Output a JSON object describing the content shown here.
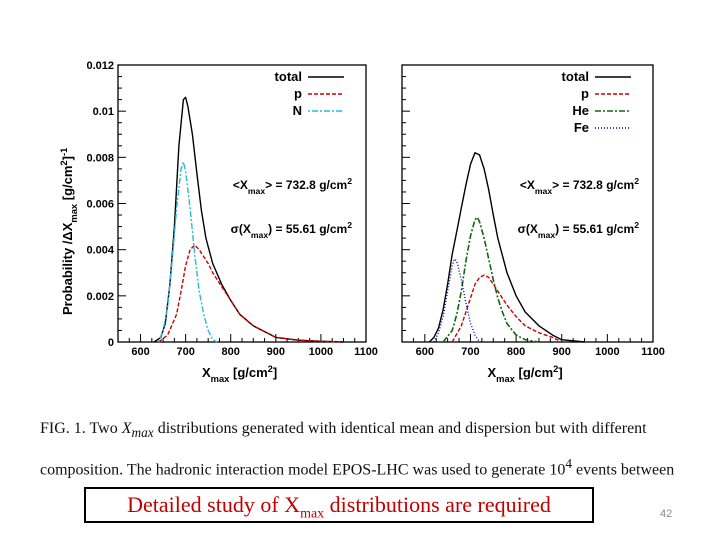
{
  "caption": {
    "line1_pre": "FIG. 1.  Two ",
    "line1_var": "X",
    "line1_sub": "max",
    "line1_post": " distributions generated with identical mean and dispersion but with different",
    "line2_pre": "composition. The hadronic interaction model EPOS-LHC was used to generate 10",
    "line2_sup": "4",
    "line2_post": " events between"
  },
  "banner": {
    "pre": "Detailed study of X",
    "sub": "max",
    "post": " distributions are required"
  },
  "slide_number": "42",
  "colors": {
    "total": "#000000",
    "p": "#cc0000",
    "N": "#22bbdd",
    "He": "#116611",
    "Fe": "#0000cc",
    "banner_text": "#c00000"
  },
  "chart_data": [
    {
      "type": "line",
      "title": "",
      "xlabel": "X_max [g/cm^2]",
      "ylabel": "Probability /ΔX_max [g/cm^2]^-1",
      "xlim": [
        550,
        1100
      ],
      "ylim": [
        0,
        0.012
      ],
      "xticks": [
        "600",
        "700",
        "800",
        "900",
        "1000",
        "1100"
      ],
      "yticks": [
        "0",
        "0.002",
        "0.004",
        "0.006",
        "0.008",
        "0.01",
        "0.012"
      ],
      "legend": [
        {
          "label": "total",
          "key": "total"
        },
        {
          "label": "p",
          "key": "p"
        },
        {
          "label": "N",
          "key": "N"
        }
      ],
      "annotations": [
        "<X_max> = 732.8 g/cm^2",
        "σ(X_max) = 55.61 g/cm^2"
      ],
      "series": [
        {
          "name": "total",
          "key": "total",
          "x": [
            630,
            645,
            655,
            665,
            675,
            685,
            695,
            700,
            705,
            715,
            725,
            735,
            745,
            760,
            780,
            800,
            820,
            850,
            880,
            900,
            950,
            1000,
            1050
          ],
          "y": [
            0,
            0.0002,
            0.0008,
            0.0025,
            0.005,
            0.0085,
            0.0105,
            0.0106,
            0.0102,
            0.009,
            0.0073,
            0.0057,
            0.0045,
            0.0034,
            0.0025,
            0.0018,
            0.0012,
            0.0007,
            0.0004,
            0.0002,
            8e-05,
            3e-05,
            0
          ]
        },
        {
          "name": "p",
          "key": "p",
          "x": [
            640,
            660,
            680,
            690,
            700,
            710,
            720,
            730,
            740,
            750,
            760,
            780,
            800,
            820,
            850,
            880,
            900,
            950,
            1000,
            1050
          ],
          "y": [
            0,
            0.0003,
            0.0012,
            0.0022,
            0.0033,
            0.004,
            0.0042,
            0.004,
            0.0037,
            0.0034,
            0.003,
            0.0024,
            0.0018,
            0.0012,
            0.0007,
            0.0004,
            0.0002,
            8e-05,
            3e-05,
            0
          ]
        },
        {
          "name": "N",
          "key": "N",
          "x": [
            640,
            650,
            660,
            670,
            680,
            690,
            695,
            700,
            710,
            720,
            730,
            740,
            750,
            760,
            770
          ],
          "y": [
            0,
            0.0005,
            0.0015,
            0.0035,
            0.0058,
            0.0075,
            0.0078,
            0.0074,
            0.0058,
            0.0038,
            0.0022,
            0.0012,
            0.0005,
            0.0001,
            0
          ]
        }
      ]
    },
    {
      "type": "line",
      "title": "",
      "xlabel": "X_max [g/cm^2]",
      "ylabel": "",
      "xlim": [
        550,
        1100
      ],
      "ylim": [
        0,
        0.012
      ],
      "xticks": [
        "600",
        "700",
        "800",
        "900",
        "1000",
        "1100"
      ],
      "yticks": [],
      "legend": [
        {
          "label": "total",
          "key": "total"
        },
        {
          "label": "p",
          "key": "p"
        },
        {
          "label": "He",
          "key": "He"
        },
        {
          "label": "Fe",
          "key": "Fe"
        }
      ],
      "annotations": [
        "<X_max> = 732.8 g/cm^2",
        "σ(X_max) = 55.61 g/cm^2"
      ],
      "series": [
        {
          "name": "total",
          "key": "total",
          "x": [
            610,
            620,
            630,
            640,
            650,
            660,
            670,
            680,
            690,
            700,
            710,
            720,
            730,
            740,
            750,
            760,
            780,
            800,
            820,
            850,
            880,
            900,
            950
          ],
          "y": [
            0,
            0.0002,
            0.0006,
            0.0014,
            0.0025,
            0.0038,
            0.0048,
            0.0058,
            0.0068,
            0.0077,
            0.0082,
            0.0081,
            0.0075,
            0.0066,
            0.0055,
            0.0045,
            0.003,
            0.002,
            0.0013,
            0.0007,
            0.0003,
            0.0001,
            0
          ]
        },
        {
          "name": "p",
          "key": "p",
          "x": [
            660,
            680,
            690,
            700,
            710,
            720,
            730,
            740,
            750,
            760,
            780,
            800,
            820,
            850,
            880,
            900
          ],
          "y": [
            0,
            0.0007,
            0.0013,
            0.0019,
            0.0025,
            0.0028,
            0.0029,
            0.0028,
            0.0025,
            0.0022,
            0.0016,
            0.0011,
            0.0007,
            0.0004,
            0.0002,
            0
          ]
        },
        {
          "name": "He",
          "key": "He",
          "x": [
            640,
            660,
            670,
            680,
            690,
            700,
            710,
            715,
            720,
            730,
            740,
            750,
            760,
            770,
            780,
            800,
            820,
            850
          ],
          "y": [
            0,
            0.0005,
            0.0012,
            0.0022,
            0.0035,
            0.0046,
            0.0053,
            0.0054,
            0.0052,
            0.0045,
            0.0036,
            0.0027,
            0.0019,
            0.0013,
            0.0008,
            0.0003,
            0.0001,
            0
          ]
        },
        {
          "name": "Fe",
          "key": "Fe",
          "x": [
            620,
            630,
            640,
            650,
            660,
            665,
            670,
            680,
            690,
            700,
            710,
            720
          ],
          "y": [
            0,
            0.0004,
            0.0011,
            0.0022,
            0.0033,
            0.0036,
            0.0035,
            0.0027,
            0.0017,
            0.0008,
            0.0003,
            0
          ]
        }
      ]
    }
  ]
}
